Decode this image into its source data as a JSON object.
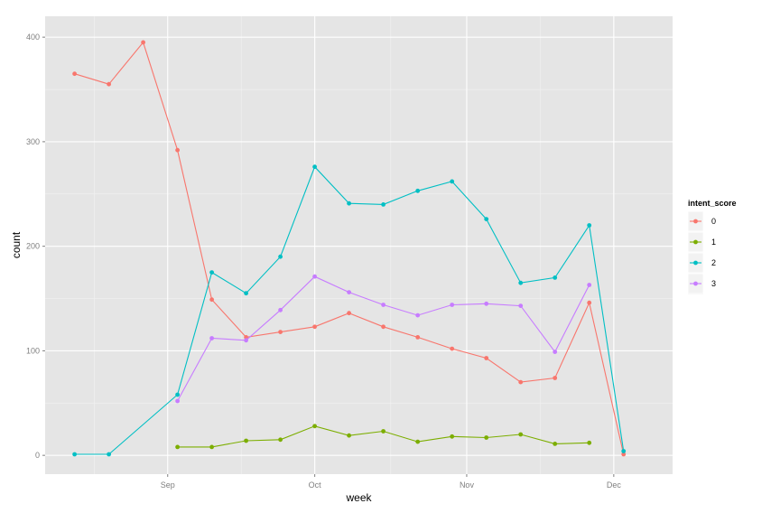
{
  "chart_data": {
    "type": "line",
    "xlabel": "week",
    "ylabel": "count",
    "x_ticks": [
      "Sep",
      "Oct",
      "Nov",
      "Dec"
    ],
    "x_tick_dates": [
      "2014-09-01",
      "2014-10-01",
      "2014-11-01",
      "2014-12-01"
    ],
    "y_ticks": [
      0,
      100,
      200,
      300,
      400
    ],
    "ylim": [
      -18,
      420
    ],
    "xlim": [
      "2014-08-07",
      "2014-12-13"
    ],
    "grid": true,
    "legend": {
      "title": "intent_score",
      "placement": "right"
    },
    "series": [
      {
        "name": "0",
        "color": "#F8766D",
        "points": [
          [
            "2014-08-13",
            365
          ],
          [
            "2014-08-20",
            355
          ],
          [
            "2014-08-27",
            395
          ],
          [
            "2014-09-03",
            292
          ],
          [
            "2014-09-10",
            149
          ],
          [
            "2014-09-17",
            113
          ],
          [
            "2014-09-24",
            118
          ],
          [
            "2014-10-01",
            123
          ],
          [
            "2014-10-08",
            136
          ],
          [
            "2014-10-15",
            123
          ],
          [
            "2014-10-22",
            113
          ],
          [
            "2014-10-29",
            102
          ],
          [
            "2014-11-05",
            93
          ],
          [
            "2014-11-12",
            70
          ],
          [
            "2014-11-19",
            74
          ],
          [
            "2014-11-26",
            146
          ],
          [
            "2014-12-03",
            1
          ]
        ]
      },
      {
        "name": "1",
        "color": "#7CAE00",
        "points": [
          [
            "2014-09-03",
            8
          ],
          [
            "2014-09-10",
            8
          ],
          [
            "2014-09-17",
            14
          ],
          [
            "2014-09-24",
            15
          ],
          [
            "2014-10-01",
            28
          ],
          [
            "2014-10-08",
            19
          ],
          [
            "2014-10-15",
            23
          ],
          [
            "2014-10-22",
            13
          ],
          [
            "2014-10-29",
            18
          ],
          [
            "2014-11-05",
            17
          ],
          [
            "2014-11-12",
            20
          ],
          [
            "2014-11-19",
            11
          ],
          [
            "2014-11-26",
            12
          ]
        ]
      },
      {
        "name": "2",
        "color": "#00BFC4",
        "points": [
          [
            "2014-08-13",
            1
          ],
          [
            "2014-08-20",
            1
          ],
          [
            "2014-09-03",
            58
          ],
          [
            "2014-09-10",
            175
          ],
          [
            "2014-09-17",
            155
          ],
          [
            "2014-09-24",
            190
          ],
          [
            "2014-10-01",
            276
          ],
          [
            "2014-10-08",
            241
          ],
          [
            "2014-10-15",
            240
          ],
          [
            "2014-10-22",
            253
          ],
          [
            "2014-10-29",
            262
          ],
          [
            "2014-11-05",
            226
          ],
          [
            "2014-11-12",
            165
          ],
          [
            "2014-11-19",
            170
          ],
          [
            "2014-11-26",
            220
          ],
          [
            "2014-12-03",
            4
          ]
        ]
      },
      {
        "name": "3",
        "color": "#C77CFF",
        "points": [
          [
            "2014-09-03",
            52
          ],
          [
            "2014-09-10",
            112
          ],
          [
            "2014-09-17",
            110
          ],
          [
            "2014-09-24",
            139
          ],
          [
            "2014-10-01",
            171
          ],
          [
            "2014-10-08",
            156
          ],
          [
            "2014-10-15",
            144
          ],
          [
            "2014-10-22",
            134
          ],
          [
            "2014-10-29",
            144
          ],
          [
            "2014-11-05",
            145
          ],
          [
            "2014-11-12",
            143
          ],
          [
            "2014-11-19",
            99
          ],
          [
            "2014-11-26",
            163
          ]
        ]
      }
    ]
  }
}
